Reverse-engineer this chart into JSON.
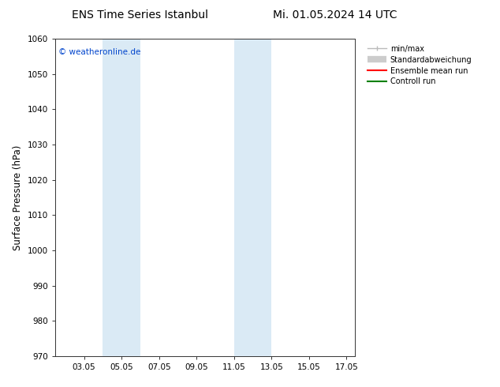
{
  "title_left": "ENS Time Series Istanbul",
  "title_right": "Mi. 01.05.2024 14 UTC",
  "ylabel": "Surface Pressure (hPa)",
  "ylim": [
    970,
    1060
  ],
  "yticks": [
    970,
    980,
    990,
    1000,
    1010,
    1020,
    1030,
    1040,
    1050,
    1060
  ],
  "xlim_start": 1.5,
  "xlim_end": 17.5,
  "xtick_positions": [
    3.05,
    5.05,
    7.05,
    9.05,
    11.05,
    13.05,
    15.05,
    17.05
  ],
  "xtick_labels": [
    "03.05",
    "05.05",
    "07.05",
    "09.05",
    "11.05",
    "13.05",
    "15.05",
    "17.05"
  ],
  "shaded_regions": [
    {
      "xstart": 4.05,
      "xend": 6.05
    },
    {
      "xstart": 11.05,
      "xend": 13.05
    }
  ],
  "shaded_color": "#daeaf5",
  "watermark": "© weatheronline.de",
  "watermark_color": "#0044cc",
  "legend_entries": [
    {
      "label": "min/max",
      "color": "#bbbbbb",
      "lw": 1.0
    },
    {
      "label": "Standardabweichung",
      "color": "#cccccc",
      "lw": 5
    },
    {
      "label": "Ensemble mean run",
      "color": "#ff0000",
      "lw": 1.5
    },
    {
      "label": "Controll run",
      "color": "#008000",
      "lw": 1.5
    }
  ],
  "background_color": "#ffffff",
  "axis_bg_color": "#ffffff",
  "title_fontsize": 10,
  "tick_fontsize": 7.5,
  "ylabel_fontsize": 8.5
}
